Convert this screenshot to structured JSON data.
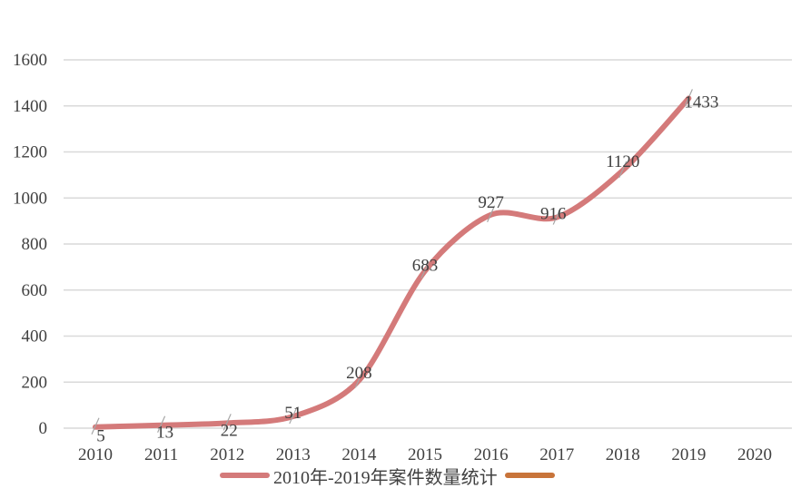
{
  "chart_data": {
    "type": "line",
    "title": "",
    "xlabel": "",
    "ylabel": "",
    "x": [
      "2010",
      "2011",
      "2012",
      "2013",
      "2014",
      "2015",
      "2016",
      "2017",
      "2018",
      "2019",
      "2020"
    ],
    "ylim": [
      0,
      1600
    ],
    "yticks": [
      0,
      200,
      400,
      600,
      800,
      1000,
      1200,
      1400,
      1600
    ],
    "grid": true,
    "legend_position": "bottom",
    "series": [
      {
        "name": "2010年-2019年案件数量统计",
        "color": "#d47a7a",
        "values": [
          5,
          13,
          22,
          51,
          208,
          683,
          927,
          916,
          1120,
          1433,
          null
        ]
      },
      {
        "name": "",
        "color": "#c8743a",
        "values": []
      }
    ],
    "data_labels": [
      "5",
      "13",
      "22",
      "51",
      "208",
      "683",
      "927",
      "916",
      "1120",
      "1433"
    ]
  },
  "legend": {
    "series1_label": "2010年-2019年案件数量统计"
  }
}
